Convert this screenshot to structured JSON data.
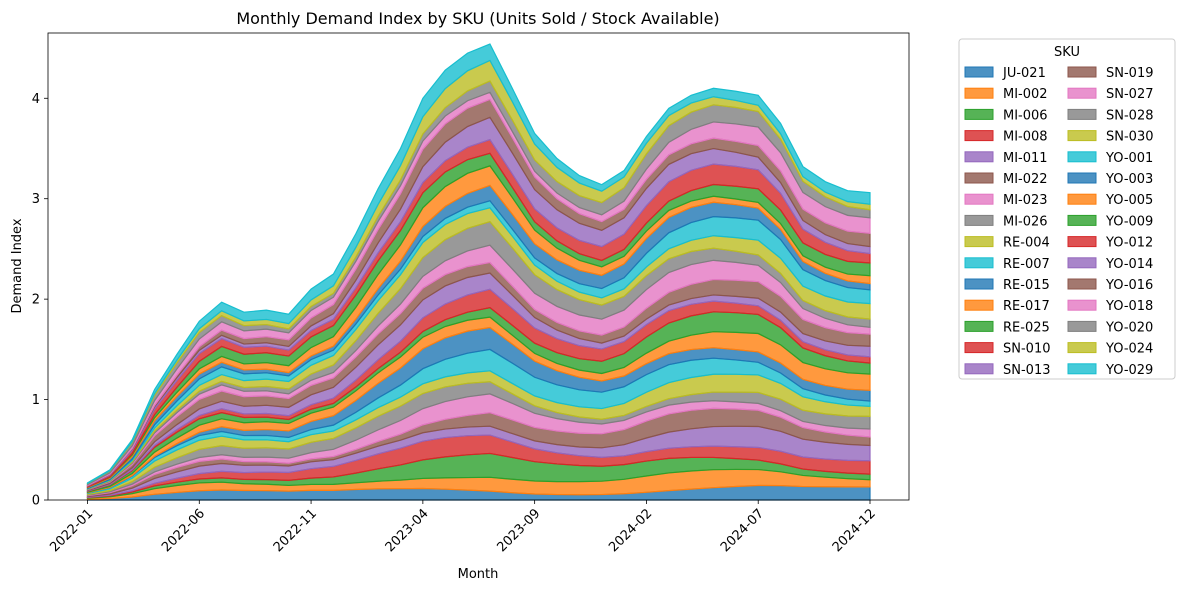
{
  "chart_data": {
    "type": "area",
    "stacked": true,
    "title": "Monthly Demand Index by SKU (Units Sold / Stock Available)",
    "xlabel": "Month",
    "ylabel": "Demand Index",
    "ylim": [
      0,
      4.65
    ],
    "yticks": [
      0,
      1,
      2,
      3,
      4
    ],
    "xticks": [
      "2022-01",
      "2022-06",
      "2022-11",
      "2023-04",
      "2023-09",
      "2024-02",
      "2024-07",
      "2024-12"
    ],
    "x": [
      "2022-01",
      "2022-02",
      "2022-03",
      "2022-04",
      "2022-05",
      "2022-06",
      "2022-07",
      "2022-08",
      "2022-09",
      "2022-10",
      "2022-11",
      "2022-12",
      "2023-01",
      "2023-02",
      "2023-03",
      "2023-04",
      "2023-05",
      "2023-06",
      "2023-07",
      "2023-08",
      "2023-09",
      "2023-10",
      "2023-11",
      "2023-12",
      "2024-01",
      "2024-02",
      "2024-03",
      "2024-04",
      "2024-05",
      "2024-06",
      "2024-07",
      "2024-08",
      "2024-09",
      "2024-10",
      "2024-11",
      "2024-12"
    ],
    "legend_title": "SKU",
    "legend_position": "outside right",
    "grid": false,
    "fill_opacity": 0.8,
    "series": [
      {
        "name": "JU-021",
        "color": "#1f77b4"
      },
      {
        "name": "MI-002",
        "color": "#ff7f0e"
      },
      {
        "name": "MI-006",
        "color": "#2ca02c"
      },
      {
        "name": "MI-008",
        "color": "#d62728"
      },
      {
        "name": "MI-011",
        "color": "#9467bd"
      },
      {
        "name": "MI-022",
        "color": "#8c564b"
      },
      {
        "name": "MI-023",
        "color": "#e377c2"
      },
      {
        "name": "MI-026",
        "color": "#7f7f7f"
      },
      {
        "name": "RE-004",
        "color": "#bcbd22"
      },
      {
        "name": "RE-007",
        "color": "#17becf"
      },
      {
        "name": "RE-015",
        "color": "#1f77b4"
      },
      {
        "name": "RE-017",
        "color": "#ff7f0e"
      },
      {
        "name": "RE-025",
        "color": "#2ca02c"
      },
      {
        "name": "SN-010",
        "color": "#d62728"
      },
      {
        "name": "SN-013",
        "color": "#9467bd"
      },
      {
        "name": "SN-019",
        "color": "#8c564b"
      },
      {
        "name": "SN-027",
        "color": "#e377c2"
      },
      {
        "name": "SN-028",
        "color": "#7f7f7f"
      },
      {
        "name": "SN-030",
        "color": "#bcbd22"
      },
      {
        "name": "YO-001",
        "color": "#17becf"
      },
      {
        "name": "YO-003",
        "color": "#1f77b4"
      },
      {
        "name": "YO-005",
        "color": "#ff7f0e"
      },
      {
        "name": "YO-009",
        "color": "#2ca02c"
      },
      {
        "name": "YO-012",
        "color": "#d62728"
      },
      {
        "name": "YO-014",
        "color": "#9467bd"
      },
      {
        "name": "YO-016",
        "color": "#8c564b"
      },
      {
        "name": "YO-018",
        "color": "#e377c2"
      },
      {
        "name": "YO-020",
        "color": "#7f7f7f"
      },
      {
        "name": "YO-024",
        "color": "#bcbd22"
      },
      {
        "name": "YO-029",
        "color": "#17becf"
      }
    ],
    "stack_totals": [
      0.17,
      0.3,
      0.6,
      1.1,
      1.45,
      1.78,
      1.97,
      1.87,
      1.89,
      1.85,
      2.1,
      2.25,
      2.65,
      3.1,
      3.5,
      4.0,
      4.28,
      4.45,
      4.54,
      4.1,
      3.65,
      3.4,
      3.23,
      3.14,
      3.28,
      3.62,
      3.9,
      4.03,
      4.1,
      4.07,
      4.03,
      3.75,
      3.32,
      3.17,
      3.08,
      3.06
    ]
  }
}
